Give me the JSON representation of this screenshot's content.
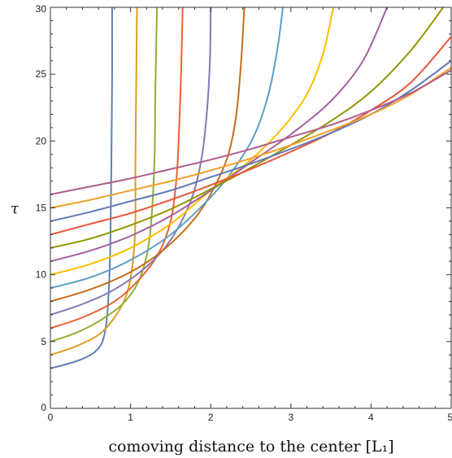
{
  "chart_data": {
    "type": "line",
    "xlabel": "comoving distance to the center [L₁]",
    "ylabel": "τ",
    "xlim": [
      0,
      5
    ],
    "ylim": [
      0,
      30
    ],
    "x_ticks": [
      0,
      1,
      2,
      3,
      4,
      5
    ],
    "y_ticks": [
      0,
      5,
      10,
      15,
      20,
      25,
      30
    ],
    "grid": false,
    "legend": "none",
    "series": [
      {
        "color": "#5E81B5",
        "x": [
          0.0,
          0.2,
          0.4,
          0.55,
          0.65,
          0.7,
          0.73,
          0.75,
          0.76,
          0.77,
          0.77
        ],
        "y": [
          3.0,
          3.3,
          3.7,
          4.2,
          5.0,
          6.5,
          9.0,
          13.0,
          18.0,
          25.0,
          30.0
        ]
      },
      {
        "color": "#E19C24",
        "x": [
          0.0,
          0.3,
          0.6,
          0.8,
          0.95,
          1.03,
          1.06,
          1.06,
          1.07,
          1.08
        ],
        "y": [
          4.0,
          4.6,
          5.5,
          6.8,
          8.5,
          11.0,
          14.0,
          18.0,
          24.0,
          30.0
        ]
      },
      {
        "color": "#8FB032",
        "x": [
          0.0,
          0.3,
          0.6,
          0.9,
          1.1,
          1.22,
          1.27,
          1.3,
          1.31,
          1.33
        ],
        "y": [
          5.0,
          5.6,
          6.5,
          7.8,
          9.5,
          12.0,
          15.0,
          19.0,
          24.0,
          30.0
        ]
      },
      {
        "color": "#EB6235",
        "x": [
          0.0,
          0.4,
          0.8,
          1.1,
          1.35,
          1.5,
          1.57,
          1.6,
          1.63,
          1.65
        ],
        "y": [
          6.0,
          6.8,
          8.0,
          9.6,
          11.6,
          14.0,
          17.0,
          20.0,
          25.0,
          30.0
        ]
      },
      {
        "color": "#8778B3",
        "x": [
          0.0,
          0.4,
          0.8,
          1.2,
          1.5,
          1.75,
          1.88,
          1.95,
          1.99,
          2.0
        ],
        "y": [
          7.0,
          7.8,
          8.9,
          10.6,
          12.6,
          15.5,
          18.5,
          22.0,
          26.0,
          30.0
        ]
      },
      {
        "color": "#C56E1A",
        "x": [
          0.0,
          0.5,
          1.0,
          1.4,
          1.8,
          2.05,
          2.22,
          2.32,
          2.38,
          2.42
        ],
        "y": [
          8.0,
          8.9,
          10.2,
          11.8,
          14.2,
          16.6,
          19.0,
          22.0,
          26.0,
          30.0
        ]
      },
      {
        "color": "#5D9EC7",
        "x": [
          0.0,
          0.5,
          1.0,
          1.5,
          2.0,
          2.3,
          2.55,
          2.72,
          2.83,
          2.9
        ],
        "y": [
          9.0,
          9.8,
          11.1,
          13.0,
          15.8,
          18.0,
          20.5,
          23.5,
          26.8,
          30.0
        ]
      },
      {
        "color": "#FFBF00",
        "x": [
          0.0,
          0.5,
          1.0,
          1.5,
          2.0,
          2.5,
          2.9,
          3.2,
          3.4,
          3.53
        ],
        "y": [
          10.0,
          10.8,
          12.0,
          13.8,
          16.3,
          18.6,
          21.0,
          23.5,
          26.5,
          30.0
        ]
      },
      {
        "color": "#A5609D",
        "x": [
          0.0,
          0.5,
          1.0,
          1.5,
          2.0,
          2.5,
          3.0,
          3.5,
          3.9,
          4.2
        ],
        "y": [
          11.0,
          11.8,
          12.9,
          14.4,
          16.3,
          18.4,
          20.5,
          23.0,
          26.0,
          30.0
        ]
      },
      {
        "color": "#929600",
        "x": [
          0.0,
          0.5,
          1.0,
          1.5,
          2.0,
          2.5,
          3.0,
          3.5,
          4.0,
          4.5,
          4.9
        ],
        "y": [
          12.0,
          12.7,
          13.7,
          14.9,
          16.4,
          18.0,
          19.7,
          21.5,
          23.7,
          26.8,
          30.0
        ]
      },
      {
        "color": "#E95536",
        "x": [
          0.0,
          0.5,
          1.0,
          1.5,
          2.0,
          2.5,
          3.0,
          3.5,
          4.0,
          4.5,
          5.0
        ],
        "y": [
          13.0,
          13.8,
          14.6,
          15.6,
          16.7,
          17.9,
          19.2,
          20.6,
          22.3,
          24.4,
          27.8
        ]
      },
      {
        "color": "#6279B6",
        "x": [
          0.0,
          0.5,
          1.0,
          1.5,
          2.0,
          2.5,
          3.0,
          3.5,
          4.0,
          4.5,
          5.0
        ],
        "y": [
          14.0,
          14.7,
          15.5,
          16.3,
          17.3,
          18.3,
          19.4,
          20.6,
          22.0,
          23.8,
          26.0
        ]
      },
      {
        "color": "#E95536",
        "x": [
          0.0,
          5.0
        ],
        "y": [
          14.0,
          14.0
        ],
        "hidden": true
      },
      {
        "color": "#EA6A28",
        "x": [
          0.0,
          0.5,
          1.0,
          1.5,
          2.0,
          2.5,
          3.0,
          3.5,
          4.0,
          4.5,
          5.0
        ],
        "y": [
          13.0,
          13.8,
          14.6,
          15.6,
          16.7,
          17.9,
          19.2,
          20.6,
          22.3,
          24.4,
          27.8
        ],
        "hidden": true
      },
      {
        "color": "#F0A02A",
        "x": [
          0.0,
          0.5,
          1.0,
          1.5,
          2.0,
          2.5,
          3.0,
          3.5,
          4.0,
          4.5,
          5.0
        ],
        "y": [
          15.0,
          15.6,
          16.3,
          17.0,
          17.8,
          18.7,
          19.7,
          20.8,
          22.0,
          23.5,
          25.5
        ]
      },
      {
        "color": "#B05C8E",
        "x": [
          0.0,
          0.5,
          1.0,
          1.5,
          2.0,
          2.5,
          3.0,
          3.5,
          4.0,
          4.5,
          5.0
        ],
        "y": [
          16.0,
          16.6,
          17.2,
          17.9,
          18.6,
          19.4,
          20.3,
          21.2,
          22.3,
          23.6,
          25.3
        ]
      }
    ]
  }
}
